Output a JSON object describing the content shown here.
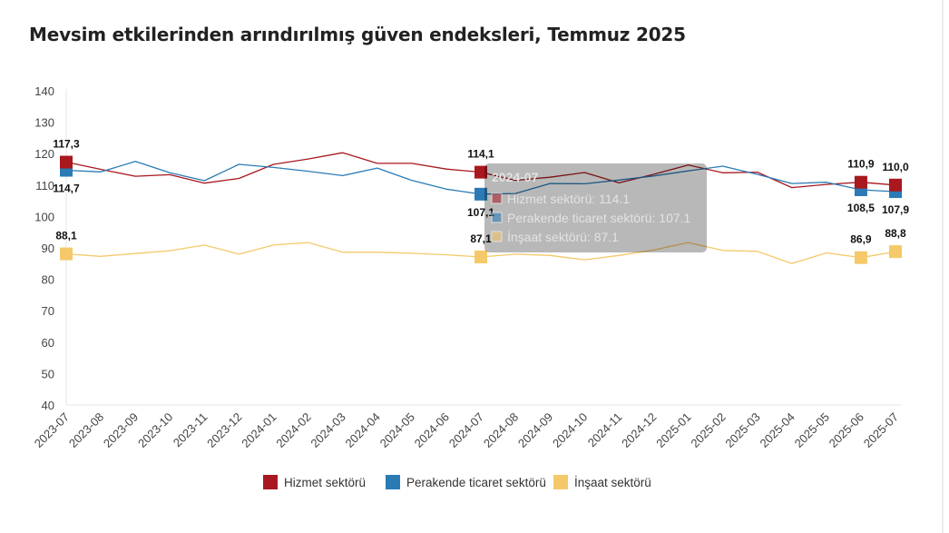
{
  "chart_data": {
    "type": "line",
    "title": "Mevsim etkilerinden arındırılmış güven endeksleri, Temmuz 2025",
    "xlabel": "",
    "ylabel": "",
    "ylim": [
      40,
      140
    ],
    "yticks": [
      40,
      50,
      60,
      70,
      80,
      90,
      100,
      110,
      120,
      130,
      140
    ],
    "categories": [
      "2023-07",
      "2023-08",
      "2023-09",
      "2023-10",
      "2023-11",
      "2023-12",
      "2024-01",
      "2024-02",
      "2024-03",
      "2024-04",
      "2024-05",
      "2024-06",
      "2024-07",
      "2024-08",
      "2024-09",
      "2024-10",
      "2024-11",
      "2024-12",
      "2025-01",
      "2025-02",
      "2025-03",
      "2025-04",
      "2025-05",
      "2025-06",
      "2025-07"
    ],
    "series": [
      {
        "name": "Hizmet sektörü",
        "color": "#a8181e",
        "values": [
          117.3,
          115.0,
          112.8,
          113.3,
          110.6,
          112.1,
          116.6,
          118.3,
          120.3,
          116.9,
          116.9,
          115.1,
          114.1,
          111.5,
          112.5,
          114.0,
          110.7,
          113.4,
          116.4,
          113.9,
          114.1,
          109.2,
          110.2,
          110.9,
          110.0
        ],
        "labels": {
          "0": "117,3",
          "12": "114,1",
          "23": "110,9",
          "24": "110,0"
        }
      },
      {
        "name": "Perakende ticaret sektörü",
        "color": "#2a7bb5",
        "values": [
          114.7,
          114.2,
          117.5,
          113.9,
          111.4,
          116.6,
          115.6,
          114.4,
          113.0,
          115.4,
          111.5,
          108.7,
          107.1,
          107.3,
          110.5,
          110.4,
          111.6,
          112.9,
          114.5,
          116.0,
          113.4,
          110.5,
          110.9,
          108.5,
          107.9
        ],
        "labels": {
          "0": "114,7",
          "12": "107,1",
          "23": "108,5",
          "24": "107,9"
        }
      },
      {
        "name": "İnşaat sektörü",
        "color": "#f5c96a",
        "values": [
          88.1,
          87.3,
          88.2,
          89.1,
          90.9,
          88.0,
          90.9,
          91.7,
          88.6,
          88.6,
          88.3,
          87.8,
          87.1,
          88.0,
          87.6,
          86.2,
          87.6,
          89.3,
          91.7,
          89.2,
          88.9,
          85.0,
          88.4,
          86.9,
          88.8
        ],
        "labels": {
          "0": "88,1",
          "12": "87,1",
          "23": "86,9",
          "24": "88,8"
        }
      }
    ],
    "legend": {
      "position": "bottom"
    },
    "grid": false,
    "tooltip": {
      "index": 12,
      "title": "2024-07",
      "lines": [
        "Hizmet sektörü: 114.1",
        "Perakende ticaret sektörü: 107.1",
        "İnşaat sektörü: 87.1"
      ]
    }
  }
}
